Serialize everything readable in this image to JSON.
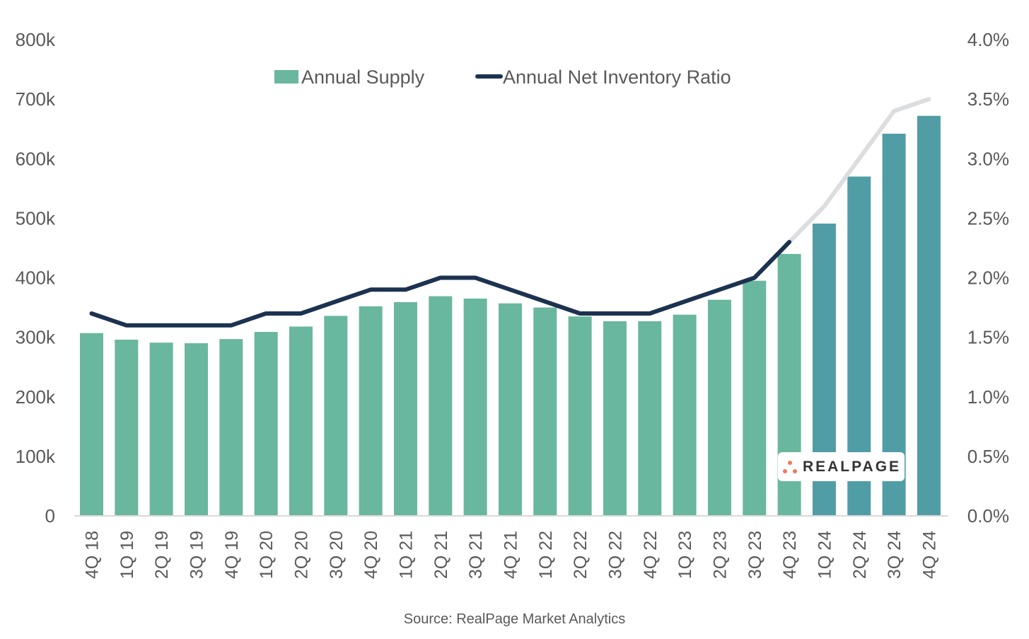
{
  "chart_data": {
    "type": "bar",
    "title": "",
    "xlabel": "",
    "ylabel": "",
    "categories": [
      "4Q 18",
      "1Q 19",
      "2Q 19",
      "3Q 19",
      "4Q 19",
      "1Q 20",
      "2Q 20",
      "3Q 20",
      "4Q 20",
      "1Q 21",
      "2Q 21",
      "3Q 21",
      "4Q 21",
      "1Q 22",
      "2Q 22",
      "3Q 22",
      "4Q 22",
      "1Q 23",
      "2Q 23",
      "3Q 23",
      "4Q 23",
      "1Q 24",
      "2Q 24",
      "3Q 24",
      "4Q 24"
    ],
    "series": [
      {
        "name": "Annual Supply",
        "type": "bar",
        "axis": "left",
        "color": "#69b79e",
        "forecast_color": "#519da5",
        "forecast_from_index": 21,
        "values": [
          307000,
          296000,
          291000,
          290000,
          297000,
          309000,
          318000,
          336000,
          352000,
          359000,
          369000,
          365000,
          357000,
          350000,
          335000,
          327000,
          327000,
          338000,
          363000,
          395000,
          440000,
          491000,
          570000,
          642000,
          672000
        ]
      },
      {
        "name": "Annual Net Inventory Ratio",
        "type": "line",
        "axis": "right",
        "color": "#1c3250",
        "unit": "%",
        "values": [
          1.7,
          1.6,
          1.6,
          1.6,
          1.6,
          1.7,
          1.7,
          1.8,
          1.9,
          1.9,
          2.0,
          2.0,
          1.9,
          1.8,
          1.7,
          1.7,
          1.7,
          1.8,
          1.9,
          2.0,
          2.3,
          null,
          null,
          null,
          null
        ]
      },
      {
        "name": "Annual Net Inventory Ratio (forecast)",
        "type": "line",
        "axis": "right",
        "color": "#dcdddf",
        "unit": "%",
        "values": [
          null,
          null,
          null,
          null,
          null,
          null,
          null,
          null,
          null,
          null,
          null,
          null,
          null,
          null,
          null,
          null,
          null,
          null,
          null,
          null,
          2.3,
          2.6,
          3.0,
          3.4,
          3.5
        ]
      }
    ],
    "y_left": {
      "ylim": [
        0,
        800000
      ],
      "ticks": [
        "0",
        "100k",
        "200k",
        "300k",
        "400k",
        "500k",
        "600k",
        "700k",
        "800k"
      ]
    },
    "y_right": {
      "ylim": [
        0,
        4.0
      ],
      "ticks": [
        "0.0%",
        "0.5%",
        "1.0%",
        "1.5%",
        "2.0%",
        "2.5%",
        "3.0%",
        "3.5%",
        "4.0%"
      ]
    },
    "grid": false,
    "legend": {
      "placement": "top-center",
      "items": [
        {
          "label": "Annual Supply",
          "symbol": "square",
          "color": "#69b79e"
        },
        {
          "label": "Annual Net Inventory Ratio",
          "symbol": "line",
          "color": "#1c3250"
        }
      ]
    }
  },
  "source": "Source: RealPage Market Analytics",
  "logo": {
    "text": "REALPAGE",
    "dot_color": "#f0795a"
  }
}
